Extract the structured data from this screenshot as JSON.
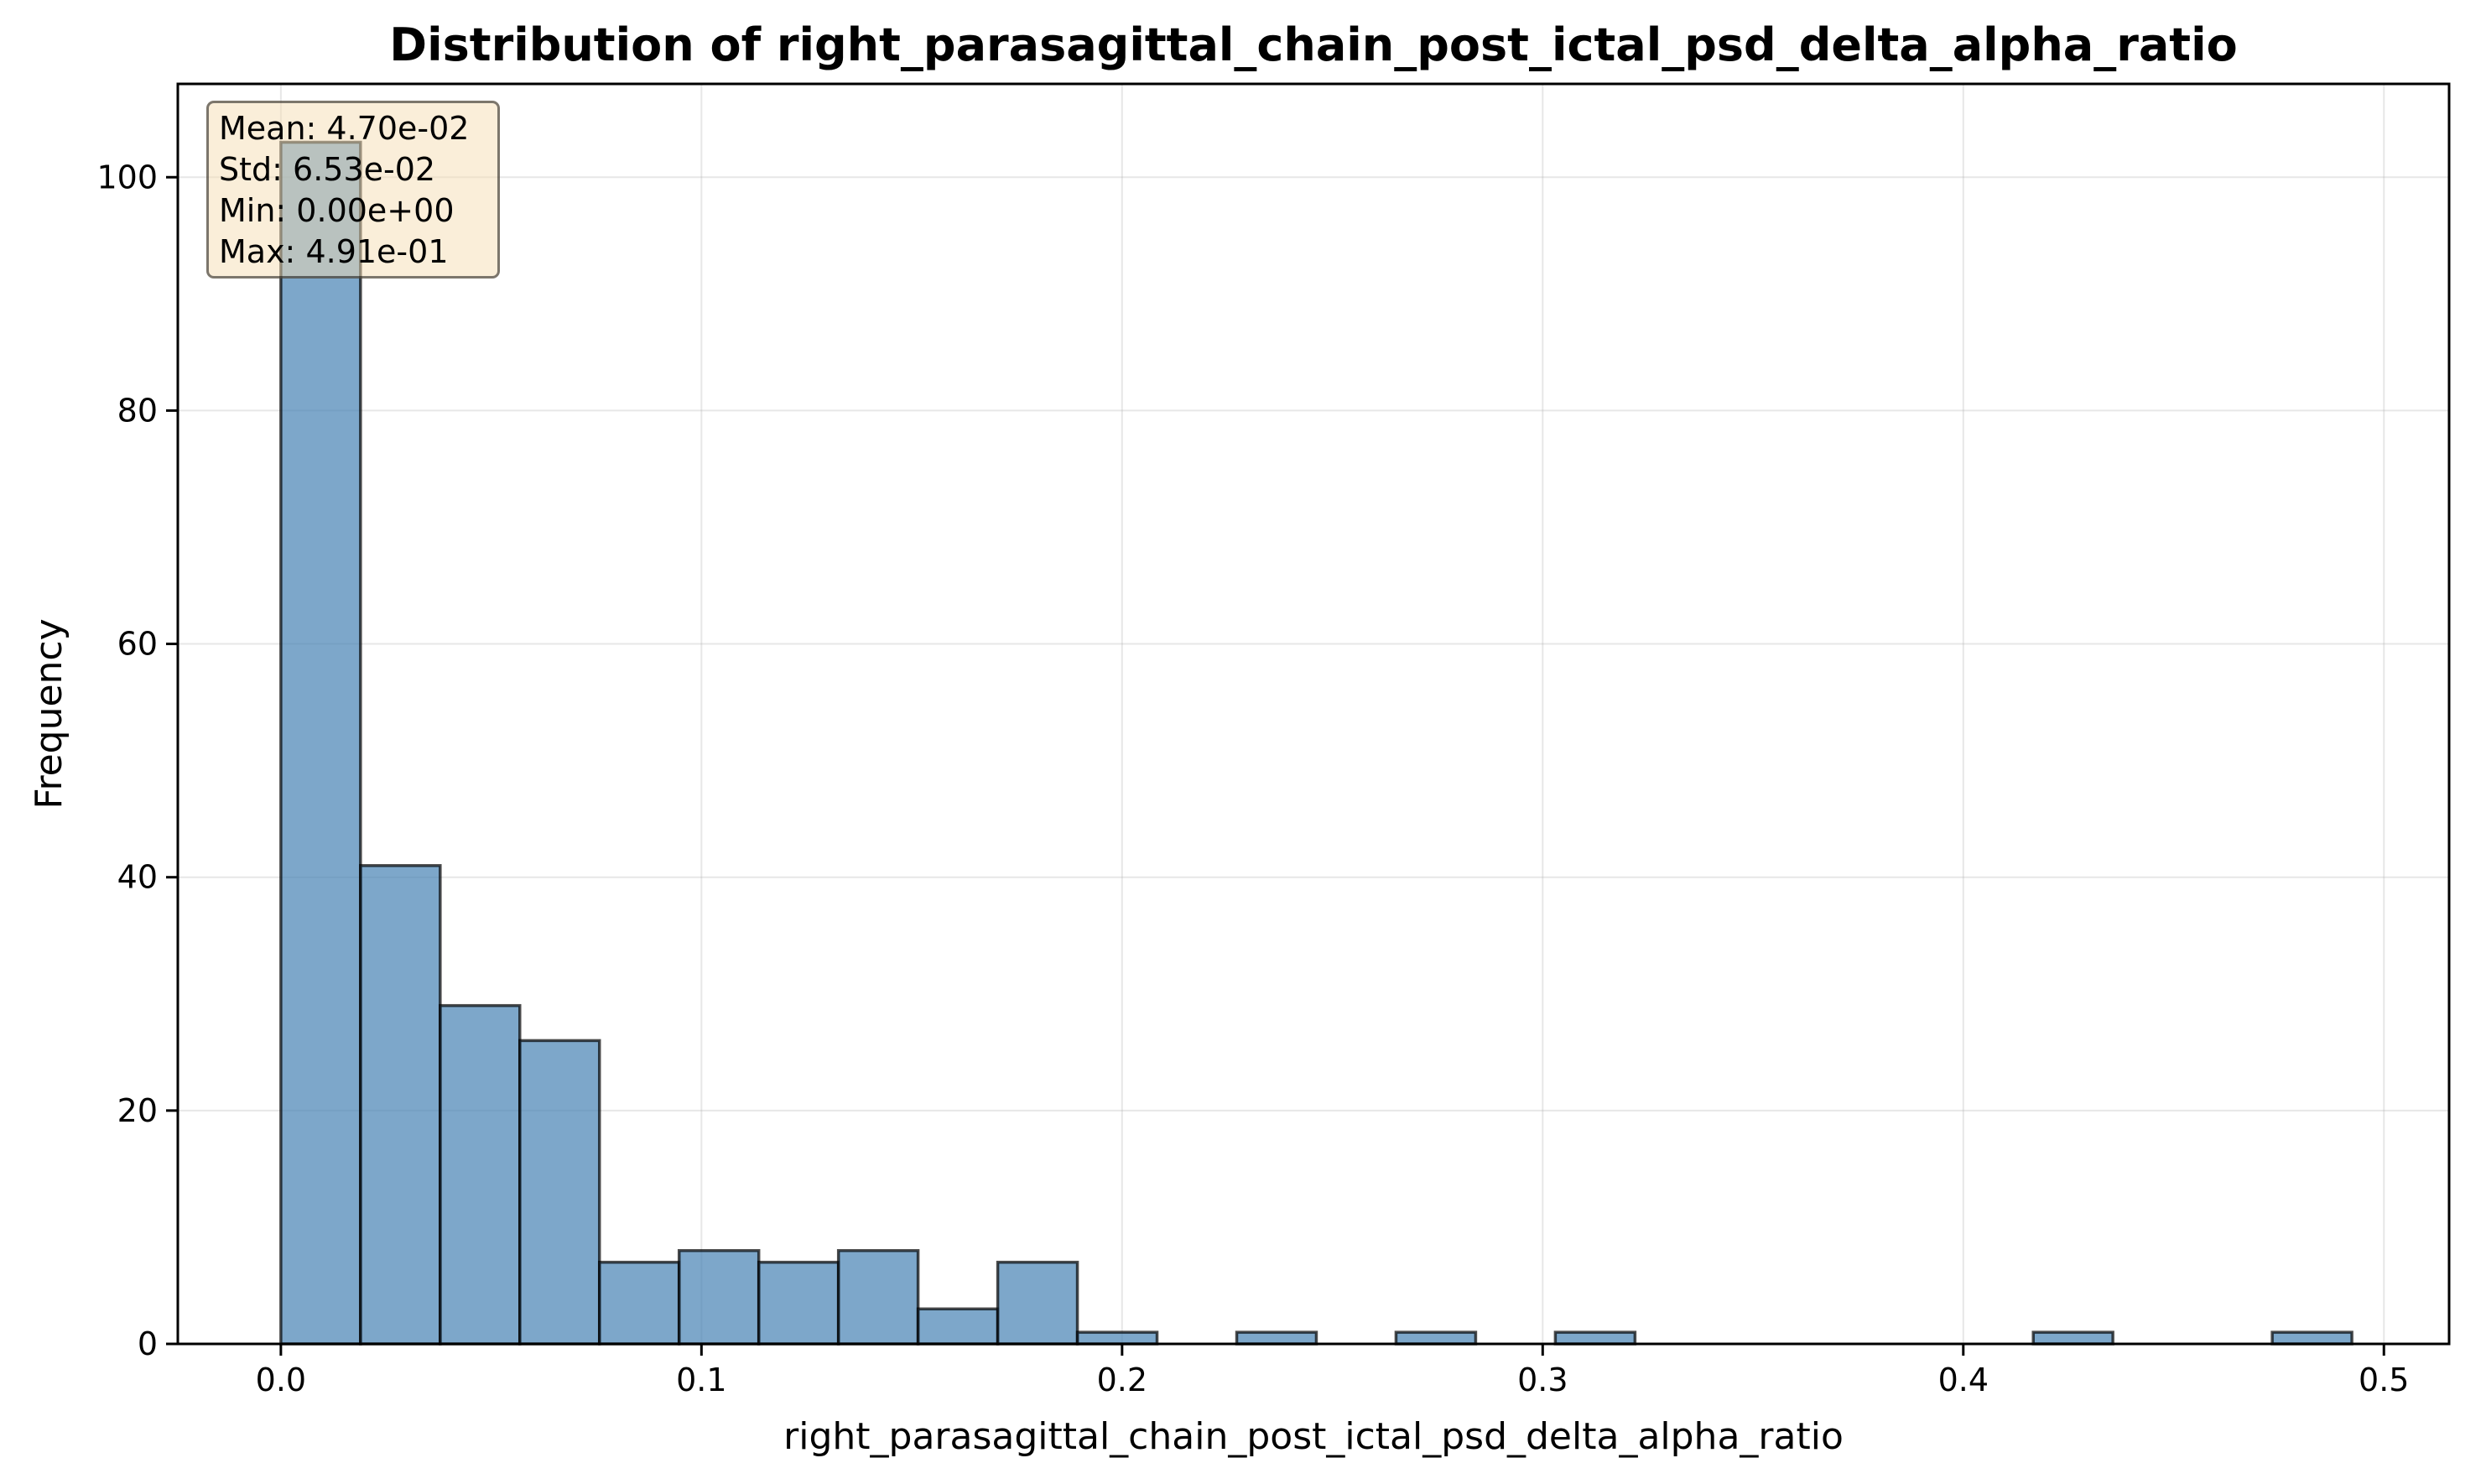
{
  "chart_data": {
    "type": "bar",
    "title": "Distribution of right_parasagittal_chain_post_ictal_psd_delta_alpha_ratio",
    "xlabel": "right_parasagittal_chain_post_ictal_psd_delta_alpha_ratio",
    "ylabel": "Frequency",
    "xlim": [
      -0.0245,
      0.5155
    ],
    "ylim": [
      0,
      108
    ],
    "x_ticks": [
      0.0,
      0.1,
      0.2,
      0.3,
      0.4,
      0.5
    ],
    "x_tick_labels": [
      "0.0",
      "0.1",
      "0.2",
      "0.3",
      "0.4",
      "0.5"
    ],
    "y_ticks": [
      0,
      20,
      40,
      60,
      80,
      100
    ],
    "y_tick_labels": [
      "0",
      "20",
      "40",
      "60",
      "80",
      "100"
    ],
    "grid": true,
    "bin_edges": [
      0.0,
      0.01894,
      0.03788,
      0.05681,
      0.07575,
      0.09469,
      0.11363,
      0.13257,
      0.1515,
      0.17044,
      0.18938,
      0.20832,
      0.22726,
      0.24619,
      0.26513,
      0.28407,
      0.30301,
      0.32195,
      0.34088,
      0.35982,
      0.37876,
      0.3977,
      0.41664,
      0.43557,
      0.45451,
      0.47345,
      0.49239
    ],
    "counts": [
      103,
      41,
      29,
      26,
      7,
      8,
      7,
      8,
      3,
      7,
      1,
      0,
      1,
      0,
      1,
      0,
      1,
      0,
      0,
      0,
      0,
      0,
      1,
      0,
      0,
      1
    ],
    "colors": {
      "bar_fill": "#4682b4",
      "bar_edge": "#000000",
      "stats_box_fill": "#f5deb3"
    },
    "stats_box": {
      "mean": "Mean: 4.70e-02",
      "std": "Std: 6.53e-02",
      "min": "Min: 0.00e+00",
      "max": "Max: 4.91e-01"
    }
  }
}
